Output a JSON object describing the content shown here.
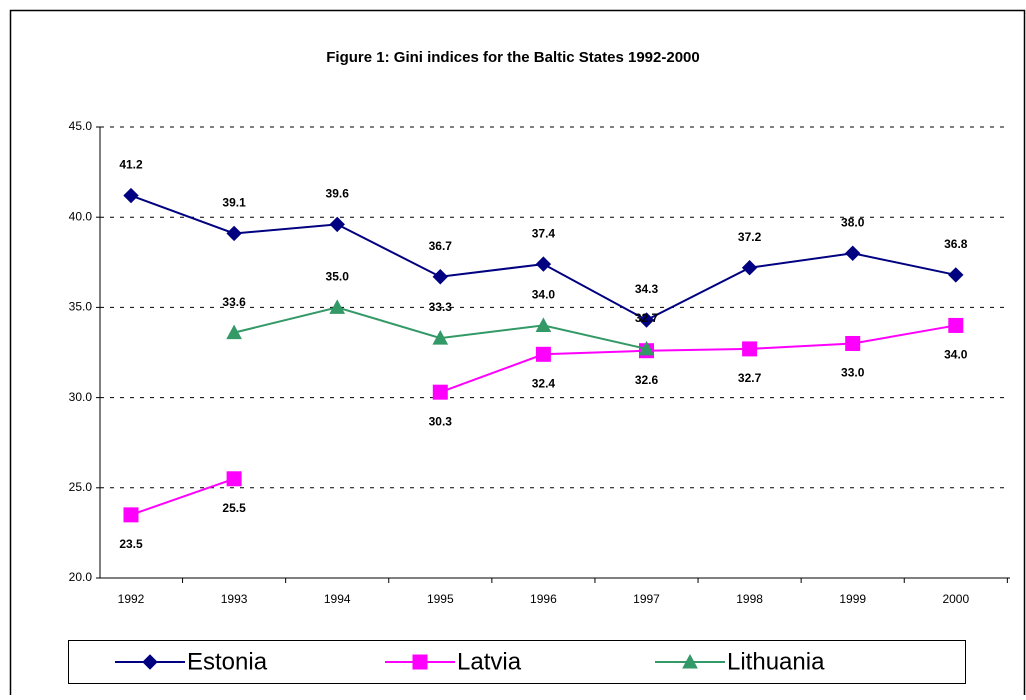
{
  "chart_data": {
    "type": "line",
    "title": "Figure 1: Gini indices for the Baltic States 1992-2000",
    "categories": [
      "1992",
      "1993",
      "1994",
      "1995",
      "1996",
      "1997",
      "1998",
      "1999",
      "2000"
    ],
    "series": [
      {
        "name": "Estonia",
        "color": "#000080",
        "marker": "diamond",
        "values": [
          41.2,
          39.1,
          39.6,
          36.7,
          37.4,
          34.3,
          37.2,
          38.0,
          36.8
        ],
        "value_labels": [
          "41.2",
          "39.1",
          "39.6",
          "36.7",
          "37.4",
          "34.3",
          "37.2",
          "38.0",
          "36.8"
        ]
      },
      {
        "name": "Latvia",
        "color": "#ff00ff",
        "marker": "square",
        "values": [
          23.5,
          25.5,
          null,
          30.3,
          32.4,
          32.6,
          32.7,
          33.0,
          34.0
        ],
        "value_labels": [
          "23.5",
          "25.5",
          null,
          "30.3",
          "32.4",
          "32.6",
          "32.7",
          "33.0",
          "34.0"
        ]
      },
      {
        "name": "Lithuania",
        "color": "#339966",
        "marker": "triangle",
        "values": [
          null,
          33.6,
          35.0,
          33.3,
          34.0,
          32.7,
          null,
          null,
          null
        ],
        "value_labels": [
          null,
          "33.6",
          "35.0",
          "33.3",
          "34.0",
          "32.7",
          null,
          null,
          null
        ]
      }
    ],
    "ylim": [
      20,
      45
    ],
    "yticks": [
      {
        "value": 20,
        "label": "20.0"
      },
      {
        "value": 25,
        "label": "25.0"
      },
      {
        "value": 30,
        "label": "30.0"
      },
      {
        "value": 35,
        "label": "35.0"
      },
      {
        "value": 40,
        "label": "40.0"
      },
      {
        "value": 45,
        "label": "45.0"
      }
    ],
    "grid": true,
    "legend": "bottom"
  }
}
